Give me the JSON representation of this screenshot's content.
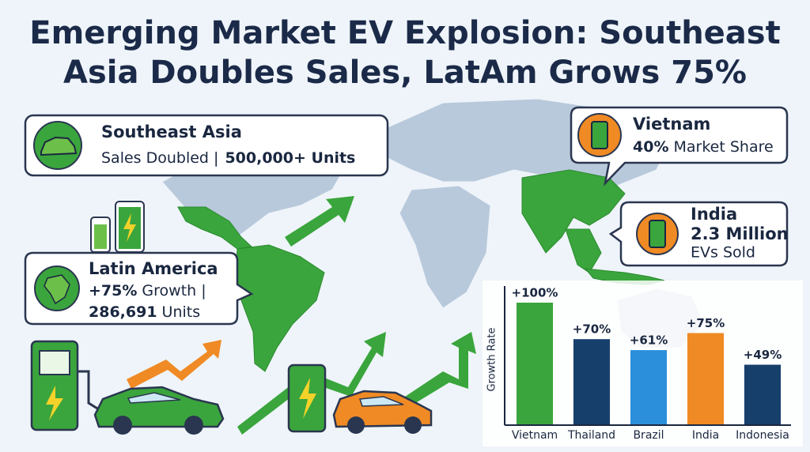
{
  "title_lines": [
    "Emerging Market EV Explosion: Southeast",
    "Asia Doubles Sales, LatAm Grows 75%"
  ],
  "callouts": {
    "southeast_asia": {
      "title": "Southeast Asia",
      "text": "Sales Doubled |",
      "highlight": "500,000+ Units"
    },
    "vietnam": {
      "title": "Vietnam",
      "highlight": "40%",
      "text": "Market Share"
    },
    "india": {
      "title": "India",
      "highlight": "2.3 Million",
      "text": "EVs Sold"
    },
    "latin_america": {
      "title": "Latin America",
      "growth": "+75%",
      "growth_text": "Growth |",
      "units": "286,691",
      "units_text": "Units"
    }
  },
  "chart_data": {
    "type": "bar",
    "y_label": "Growth Rate",
    "categories": [
      "Vietnam",
      "Thailand",
      "Brazil",
      "India",
      "Indonesia"
    ],
    "values": [
      100,
      70,
      61,
      75,
      49
    ],
    "value_labels": [
      "+100%",
      "+70%",
      "+61%",
      "+75%",
      "+49%"
    ],
    "colors": [
      "#3aa53c",
      "#173f6b",
      "#2b8fdb",
      "#f08a24",
      "#173f6b"
    ],
    "ylim": [
      0,
      100
    ]
  }
}
